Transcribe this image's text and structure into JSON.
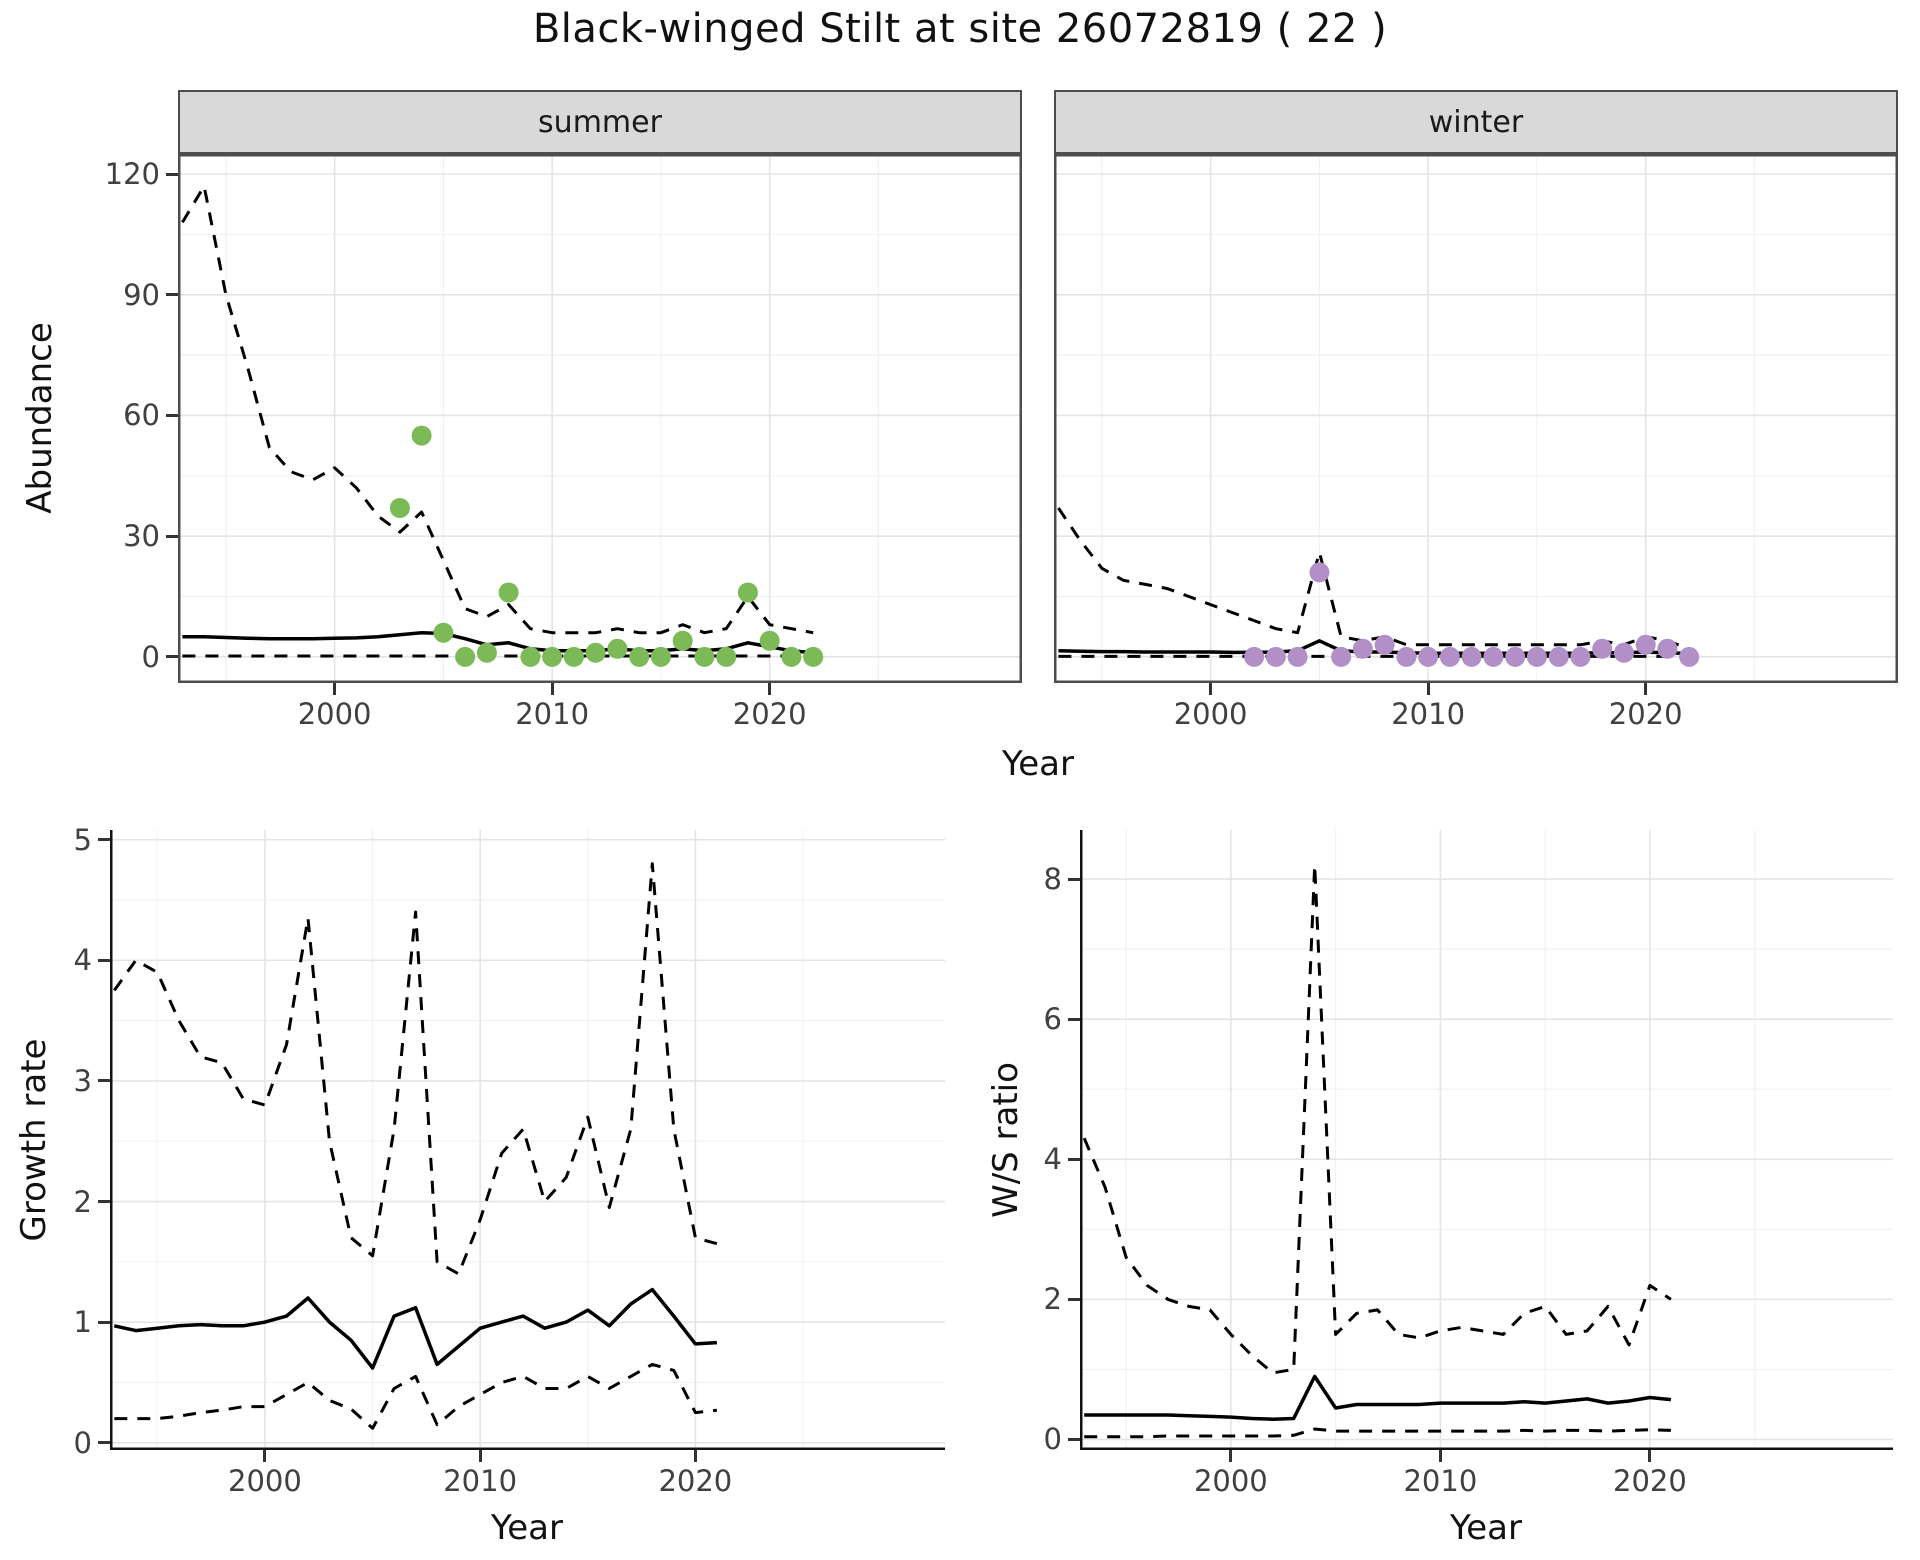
{
  "title": "Black-winged Stilt at site 26072819 ( 22 )",
  "facets": {
    "summer": "summer",
    "winter": "winter"
  },
  "axes": {
    "top": {
      "ylabel": "Abundance",
      "xlabel": "Year",
      "y_ticks": [
        "0",
        "30",
        "60",
        "90",
        "120"
      ],
      "x_ticks": [
        "2000",
        "2010",
        "2020"
      ]
    },
    "growth": {
      "ylabel": "Growth rate",
      "xlabel": "Year",
      "y_ticks": [
        "0",
        "1",
        "2",
        "3",
        "4",
        "5"
      ],
      "x_ticks": [
        "2000",
        "2010",
        "2020"
      ]
    },
    "ratio": {
      "ylabel": "W/S ratio",
      "xlabel": "Year",
      "y_ticks": [
        "0",
        "2",
        "4",
        "6",
        "8"
      ],
      "x_ticks": [
        "2000",
        "2010",
        "2020"
      ]
    }
  },
  "colors": {
    "summer_points": "#7bba57",
    "winter_points": "#b28fc7",
    "line": "#000000",
    "grid_major": "#e4e4e4",
    "grid_minor": "#f1f1f1",
    "strip_bg": "#d9d9d9",
    "panel_border": "#4d4d4d",
    "tick_text": "#404040"
  },
  "chart_data": [
    {
      "id": "abundance_summer",
      "type": "line",
      "facet": "summer",
      "title": "Abundance - summer",
      "xlabel": "Year",
      "ylabel": "Abundance",
      "ylim": [
        0,
        120
      ],
      "xlim": [
        1993,
        2031
      ],
      "grid": true,
      "x": [
        1993,
        1994,
        1995,
        1996,
        1997,
        1998,
        1999,
        2000,
        2001,
        2002,
        2003,
        2004,
        2005,
        2006,
        2007,
        2008,
        2009,
        2010,
        2011,
        2012,
        2013,
        2014,
        2015,
        2016,
        2017,
        2018,
        2019,
        2020,
        2021,
        2022
      ],
      "series": [
        {
          "name": "mean",
          "style": "solid",
          "values": [
            5,
            5,
            4.8,
            4.6,
            4.5,
            4.5,
            4.5,
            4.6,
            4.7,
            5,
            5.5,
            6,
            5.8,
            4.5,
            3,
            3.5,
            2,
            1.5,
            1.5,
            1.5,
            2,
            1.5,
            1.5,
            2,
            1.5,
            2,
            3.5,
            2.5,
            1.5,
            1
          ]
        },
        {
          "name": "ci_upper",
          "style": "dashed",
          "values": [
            108,
            117,
            90,
            72,
            52,
            46,
            44,
            47,
            42,
            35,
            31,
            36,
            24,
            12,
            10,
            13,
            7,
            6,
            6,
            6,
            7,
            6,
            6,
            8,
            6,
            7,
            15,
            8,
            7,
            6
          ]
        },
        {
          "name": "ci_lower",
          "style": "dashed",
          "values": [
            0.2,
            0.2,
            0.2,
            0.2,
            0.2,
            0.2,
            0.2,
            0.2,
            0.2,
            0.2,
            0.2,
            0.2,
            0.2,
            0.2,
            0.2,
            0.2,
            0.2,
            0.2,
            0.2,
            0.2,
            0.2,
            0.2,
            0.2,
            0.2,
            0.2,
            0.2,
            0.2,
            0.2,
            0.2,
            0.2
          ]
        }
      ],
      "points": {
        "name": "observed_counts",
        "color_key": "summer_points",
        "x": [
          2003,
          2004,
          2005,
          2006,
          2007,
          2008,
          2009,
          2010,
          2011,
          2012,
          2013,
          2014,
          2015,
          2016,
          2017,
          2018,
          2019,
          2020,
          2021,
          2022
        ],
        "y": [
          37,
          55,
          6,
          0,
          1,
          16,
          0,
          0,
          0,
          1,
          2,
          0,
          0,
          4,
          0,
          0,
          16,
          4,
          0,
          0
        ]
      }
    },
    {
      "id": "abundance_winter",
      "type": "line",
      "facet": "winter",
      "title": "Abundance - winter",
      "xlabel": "Year",
      "ylabel": "Abundance",
      "ylim": [
        0,
        120
      ],
      "xlim": [
        1993,
        2031
      ],
      "grid": true,
      "x": [
        1993,
        1994,
        1995,
        1996,
        1997,
        1998,
        1999,
        2000,
        2001,
        2002,
        2003,
        2004,
        2005,
        2006,
        2007,
        2008,
        2009,
        2010,
        2011,
        2012,
        2013,
        2014,
        2015,
        2016,
        2017,
        2018,
        2019,
        2020,
        2021,
        2022
      ],
      "series": [
        {
          "name": "mean",
          "style": "solid",
          "values": [
            1.5,
            1.4,
            1.3,
            1.3,
            1.2,
            1.2,
            1.2,
            1.2,
            1.1,
            1.1,
            1.2,
            1.5,
            4,
            1.5,
            1.2,
            1.2,
            1,
            0.9,
            0.9,
            0.9,
            0.9,
            0.9,
            0.9,
            0.9,
            0.9,
            1,
            1,
            1.2,
            1,
            0.8
          ]
        },
        {
          "name": "ci_upper",
          "style": "dashed",
          "values": [
            37,
            29,
            22,
            19,
            18,
            17,
            15,
            13,
            11,
            9,
            7,
            6,
            26,
            5,
            4,
            5,
            3,
            3,
            3,
            3,
            3,
            3,
            3,
            3,
            3,
            4,
            3,
            5,
            4,
            2
          ]
        },
        {
          "name": "ci_lower",
          "style": "dashed",
          "values": [
            0.1,
            0.1,
            0.1,
            0.1,
            0.1,
            0.1,
            0.1,
            0.1,
            0.1,
            0.1,
            0.1,
            0.1,
            0.1,
            0.1,
            0.1,
            0.1,
            0.1,
            0.1,
            0.1,
            0.1,
            0.1,
            0.1,
            0.1,
            0.1,
            0.1,
            0.1,
            0.1,
            0.1,
            0.1,
            0.1
          ]
        }
      ],
      "points": {
        "name": "observed_counts",
        "color_key": "winter_points",
        "x": [
          2002,
          2003,
          2004,
          2005,
          2006,
          2007,
          2008,
          2009,
          2010,
          2011,
          2012,
          2013,
          2014,
          2015,
          2016,
          2017,
          2018,
          2019,
          2020,
          2021,
          2022
        ],
        "y": [
          0,
          0,
          0,
          21,
          0,
          2,
          3,
          0,
          0,
          0,
          0,
          0,
          0,
          0,
          0,
          0,
          2,
          1,
          3,
          2,
          0
        ]
      }
    },
    {
      "id": "growth_rate",
      "type": "line",
      "title": "Growth rate",
      "xlabel": "Year",
      "ylabel": "Growth rate",
      "ylim": [
        0,
        5
      ],
      "xlim": [
        1993,
        2031
      ],
      "grid": true,
      "x": [
        1993,
        1994,
        1995,
        1996,
        1997,
        1998,
        1999,
        2000,
        2001,
        2002,
        2003,
        2004,
        2005,
        2006,
        2007,
        2008,
        2009,
        2010,
        2011,
        2012,
        2013,
        2014,
        2015,
        2016,
        2017,
        2018,
        2019,
        2020,
        2021
      ],
      "series": [
        {
          "name": "mean",
          "style": "solid",
          "values": [
            0.97,
            0.93,
            0.95,
            0.97,
            0.98,
            0.97,
            0.97,
            1.0,
            1.05,
            1.2,
            1.0,
            0.85,
            0.62,
            1.05,
            1.12,
            0.65,
            0.8,
            0.95,
            1.0,
            1.05,
            0.95,
            1.0,
            1.1,
            0.97,
            1.15,
            1.27,
            1.05,
            0.82,
            0.83
          ]
        },
        {
          "name": "ci_upper",
          "style": "dashed",
          "values": [
            3.75,
            4.0,
            3.9,
            3.5,
            3.2,
            3.15,
            2.85,
            2.8,
            3.3,
            4.35,
            2.5,
            1.7,
            1.55,
            2.6,
            4.4,
            1.5,
            1.4,
            1.85,
            2.4,
            2.6,
            2.0,
            2.2,
            2.7,
            1.95,
            2.6,
            4.8,
            2.6,
            1.7,
            1.65
          ]
        },
        {
          "name": "ci_lower",
          "style": "dashed",
          "values": [
            0.2,
            0.2,
            0.2,
            0.22,
            0.25,
            0.27,
            0.3,
            0.3,
            0.4,
            0.5,
            0.35,
            0.28,
            0.12,
            0.45,
            0.55,
            0.15,
            0.3,
            0.4,
            0.5,
            0.55,
            0.45,
            0.45,
            0.55,
            0.45,
            0.55,
            0.65,
            0.6,
            0.25,
            0.27
          ]
        }
      ]
    },
    {
      "id": "ws_ratio",
      "type": "line",
      "title": "W/S ratio",
      "xlabel": "Year",
      "ylabel": "W/S ratio",
      "ylim": [
        0,
        8.2
      ],
      "xlim": [
        1993,
        2031
      ],
      "grid": true,
      "x": [
        1993,
        1994,
        1995,
        1996,
        1997,
        1998,
        1999,
        2000,
        2001,
        2002,
        2003,
        2004,
        2005,
        2006,
        2007,
        2008,
        2009,
        2010,
        2011,
        2012,
        2013,
        2014,
        2015,
        2016,
        2017,
        2018,
        2019,
        2020,
        2021
      ],
      "series": [
        {
          "name": "mean",
          "style": "solid",
          "values": [
            0.35,
            0.35,
            0.35,
            0.35,
            0.35,
            0.34,
            0.33,
            0.32,
            0.3,
            0.29,
            0.3,
            0.9,
            0.45,
            0.5,
            0.5,
            0.5,
            0.5,
            0.52,
            0.52,
            0.52,
            0.52,
            0.54,
            0.52,
            0.55,
            0.58,
            0.52,
            0.55,
            0.6,
            0.57
          ]
        },
        {
          "name": "ci_upper",
          "style": "dashed",
          "values": [
            4.3,
            3.6,
            2.6,
            2.2,
            2.0,
            1.9,
            1.85,
            1.5,
            1.2,
            0.95,
            1.0,
            8.2,
            1.5,
            1.8,
            1.85,
            1.5,
            1.45,
            1.55,
            1.6,
            1.55,
            1.5,
            1.8,
            1.9,
            1.5,
            1.55,
            1.9,
            1.35,
            2.2,
            2.0
          ]
        },
        {
          "name": "ci_lower",
          "style": "dashed",
          "values": [
            0.04,
            0.04,
            0.04,
            0.04,
            0.05,
            0.05,
            0.05,
            0.05,
            0.05,
            0.05,
            0.06,
            0.15,
            0.12,
            0.12,
            0.12,
            0.12,
            0.12,
            0.12,
            0.12,
            0.12,
            0.12,
            0.13,
            0.12,
            0.13,
            0.13,
            0.12,
            0.13,
            0.14,
            0.13
          ]
        }
      ]
    }
  ]
}
